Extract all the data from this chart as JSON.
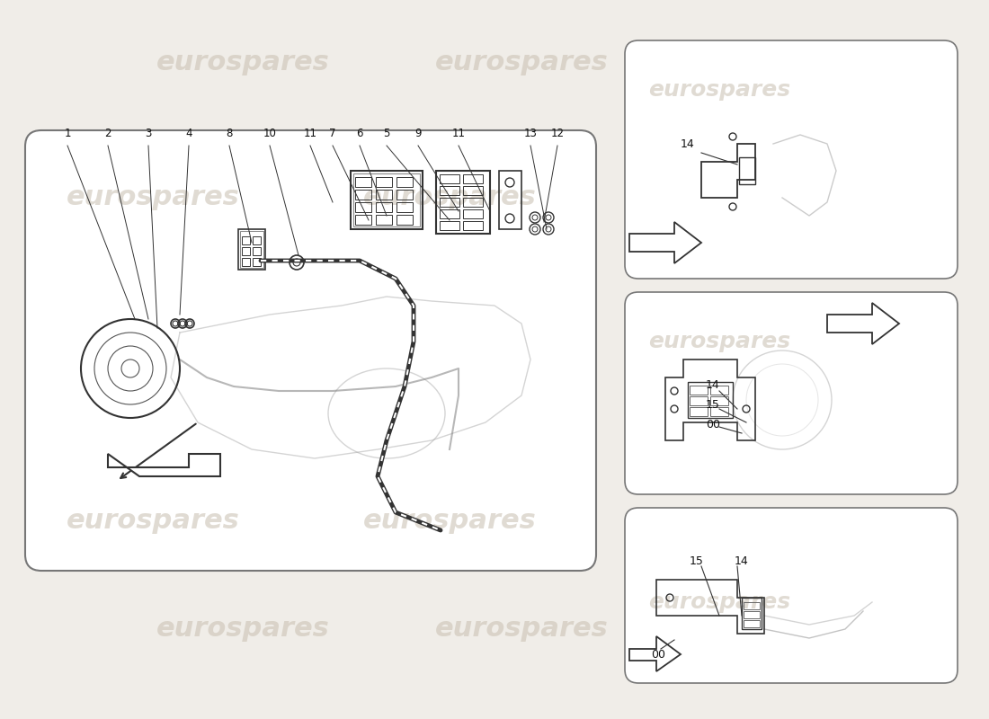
{
  "background_color": "#f0ede8",
  "watermark_text": "eurospares",
  "watermark_color": "#c8bfb0",
  "watermark_alpha": 0.55,
  "border_color": "#888888",
  "line_color": "#333333",
  "part_numbers_main": [
    "1",
    "2",
    "3",
    "4",
    "8",
    "10",
    "11",
    "7",
    "6",
    "5",
    "9",
    "11",
    "13",
    "12"
  ],
  "part_numbers_detail1": [
    "14"
  ],
  "part_numbers_detail2": [
    "14",
    "15",
    "00"
  ],
  "part_numbers_detail3": [
    "15",
    "14",
    "00"
  ],
  "title": "",
  "figsize": [
    11.0,
    8.0
  ],
  "dpi": 100
}
